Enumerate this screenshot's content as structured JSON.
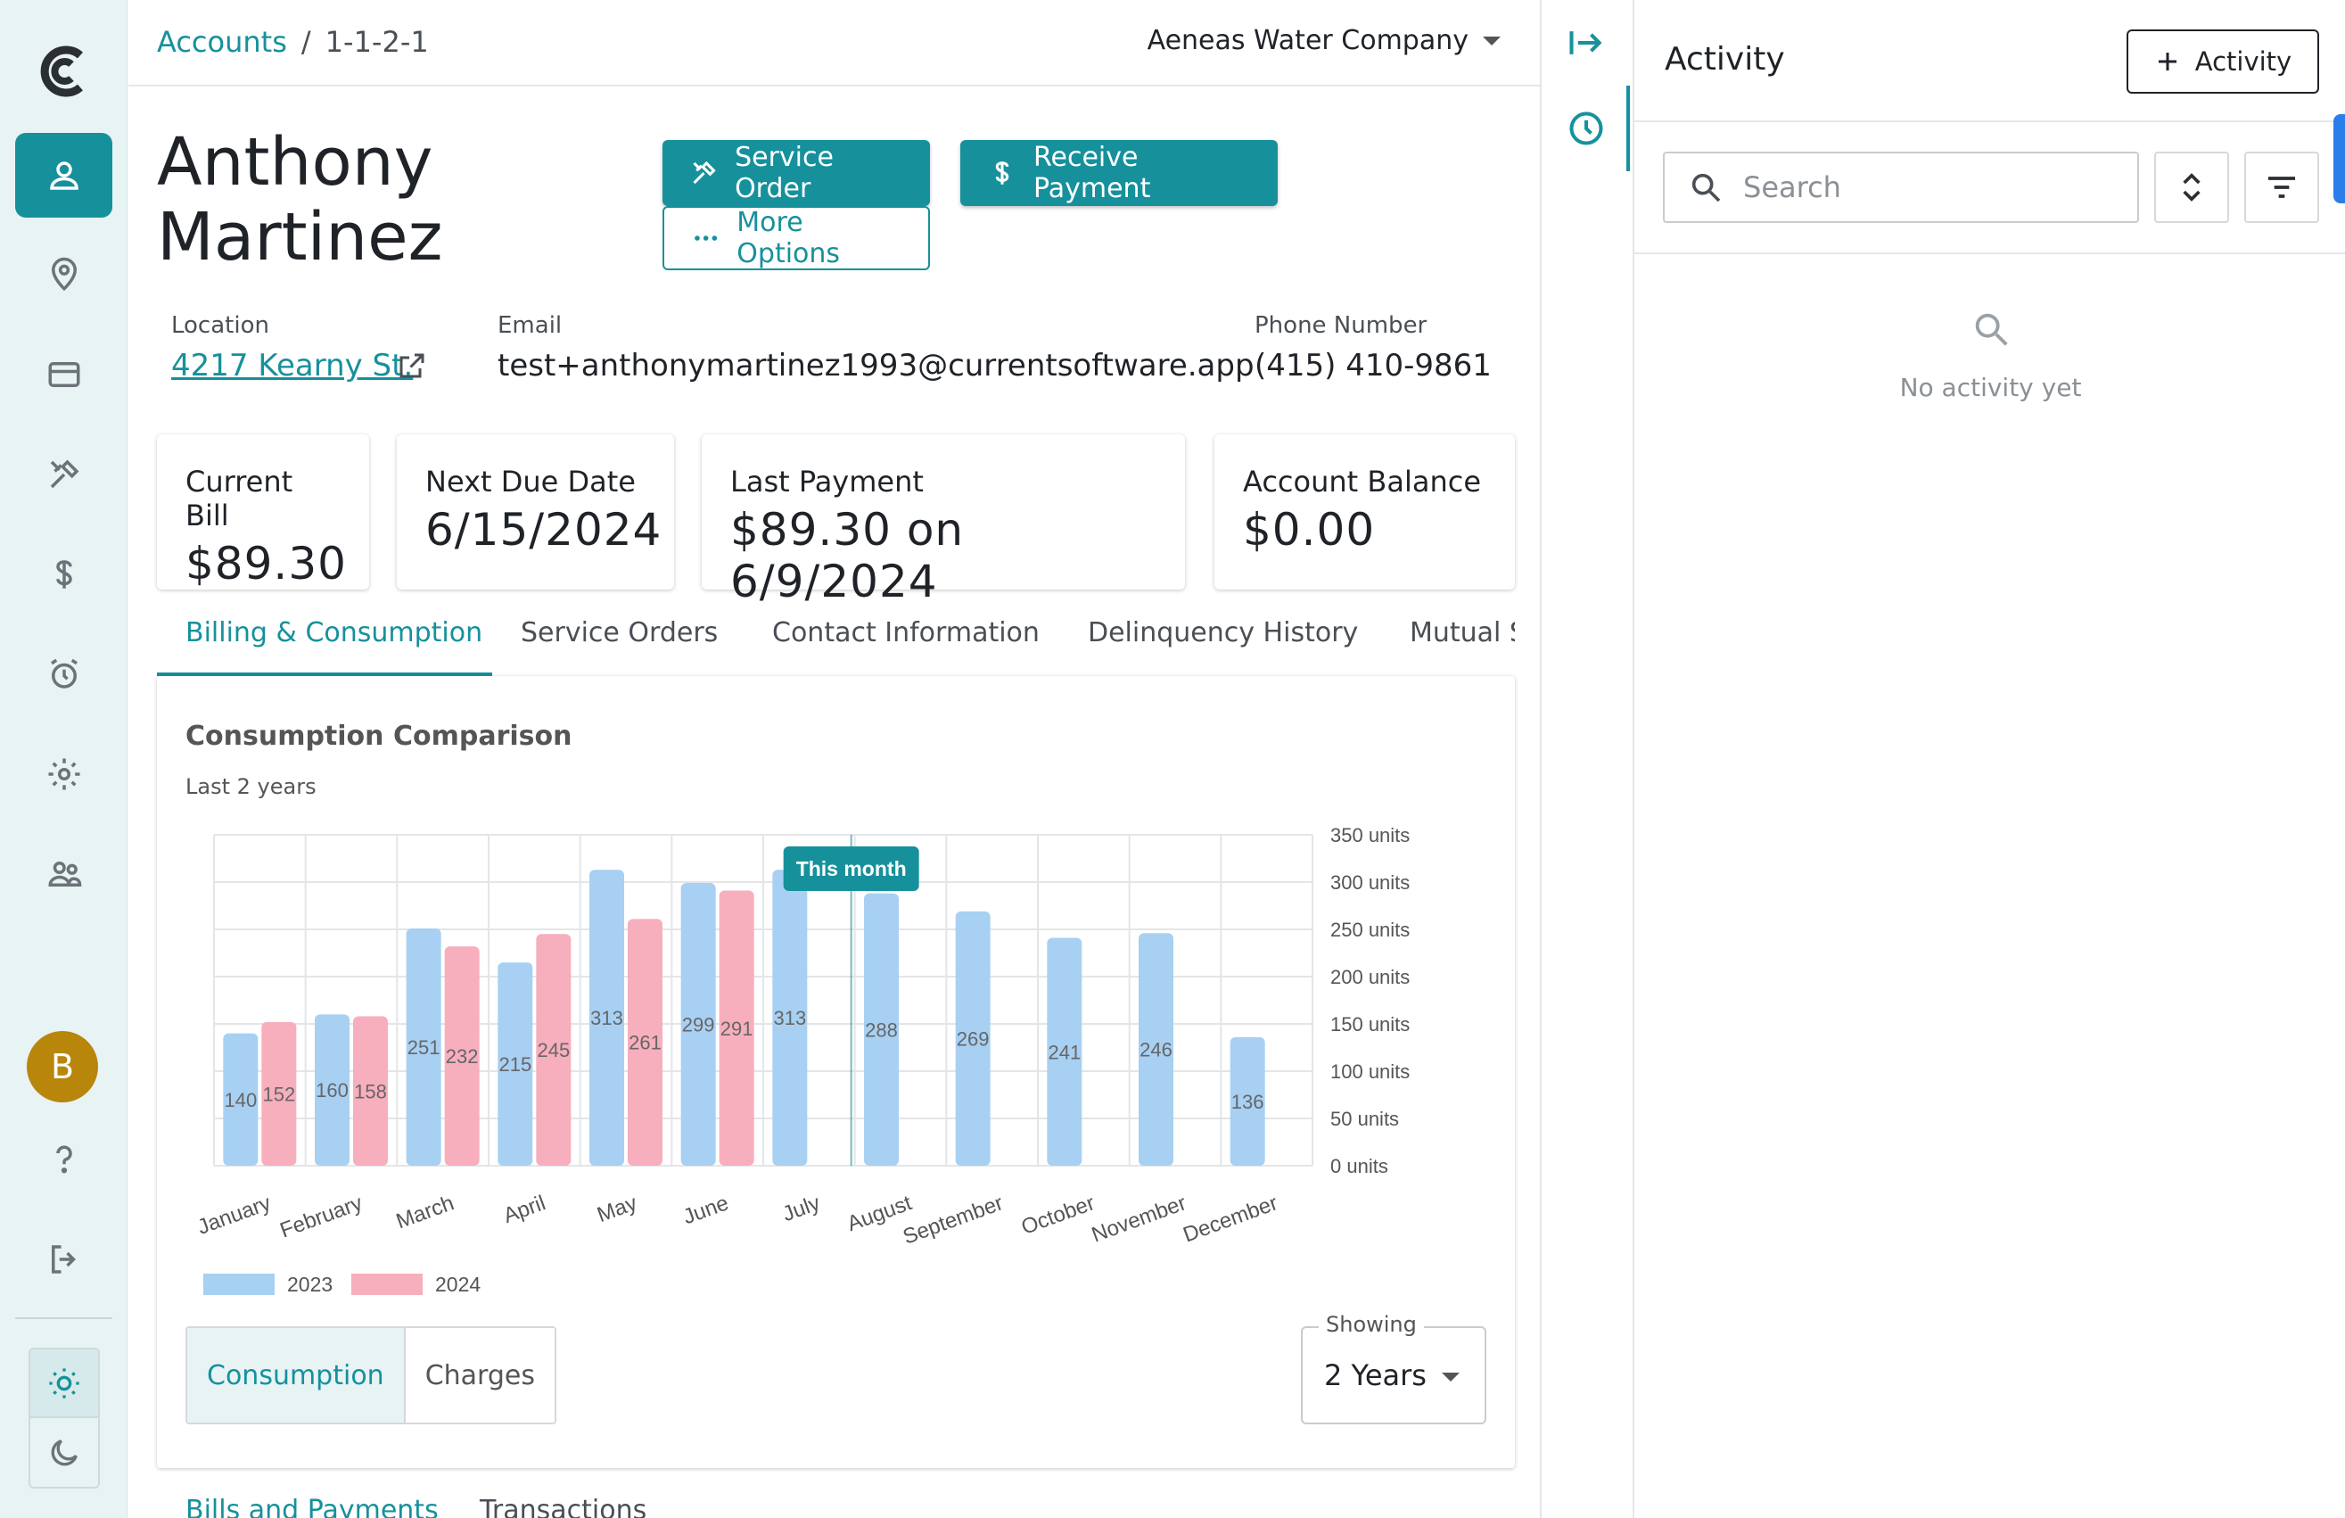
{
  "nav": {
    "items": [
      "accounts-icon",
      "location-icon",
      "billing-icon",
      "service-icon",
      "payments-icon",
      "reminders-icon",
      "settings-icon",
      "users-icon"
    ],
    "avatar_initial": "B",
    "help_icon": "help-icon",
    "logout_icon": "logout-icon",
    "theme": {
      "light": "sun-icon",
      "dark": "moon-icon"
    },
    "accent": "#16919c"
  },
  "breadcrumb": {
    "root": "Accounts",
    "separator": "/",
    "current": "1-1-2-1"
  },
  "company": "Aeneas Water Company",
  "customer": {
    "first": "Anthony",
    "last": "Martinez"
  },
  "actions": {
    "service_order": "Service Order",
    "receive_payment": "Receive Payment",
    "more_options": "More Options"
  },
  "info": {
    "location_label": "Location",
    "location_value": "4217 Kearny St.",
    "email_label": "Email",
    "email_value": "test+anthonymartinez1993@currentsoftware.app",
    "phone_label": "Phone Number",
    "phone_value": "(415) 410-9861"
  },
  "cards": [
    {
      "label": "Current Bill",
      "value": "$89.30"
    },
    {
      "label": "Next Due Date",
      "value": "6/15/2024"
    },
    {
      "label": "Last Payment",
      "value": "$89.30 on 6/9/2024"
    },
    {
      "label": "Account Balance",
      "value": "$0.00"
    }
  ],
  "tabs": [
    "Billing & Consumption",
    "Service Orders",
    "Contact Information",
    "Delinquency History",
    "Mutual S"
  ],
  "chart": {
    "title": "Consumption Comparison",
    "subtitle": "Last 2 years",
    "marker_label": "This month",
    "toggle": {
      "consumption": "Consumption",
      "charges": "Charges"
    },
    "showing_label": "Showing",
    "showing_value": "2 Years"
  },
  "chart_data": {
    "type": "bar",
    "categories": [
      "January",
      "February",
      "March",
      "April",
      "May",
      "June",
      "July",
      "August",
      "September",
      "October",
      "November",
      "December"
    ],
    "series": [
      {
        "name": "2023",
        "color": "#a7d0f3",
        "values": [
          140,
          160,
          251,
          215,
          313,
          299,
          313,
          288,
          269,
          241,
          246,
          136
        ]
      },
      {
        "name": "2024",
        "color": "#f7aebd",
        "values": [
          152,
          158,
          232,
          245,
          261,
          291,
          null,
          null,
          null,
          null,
          null,
          null
        ]
      }
    ],
    "y_ticks": [
      "0 units",
      "50 units",
      "100 units",
      "150 units",
      "200 units",
      "250 units",
      "300 units",
      "350 units"
    ],
    "ylim": [
      0,
      350
    ],
    "current_month": "July",
    "grid": true,
    "legend": "bottom-left"
  },
  "bottom_tabs": [
    "Bills and Payments",
    "Transactions"
  ],
  "rail": {
    "collapse_icon": "collapse-panel-icon",
    "history_icon": "history-icon"
  },
  "activity": {
    "title": "Activity",
    "add_label": "Activity",
    "search_placeholder": "Search",
    "empty_text": "No activity yet"
  }
}
